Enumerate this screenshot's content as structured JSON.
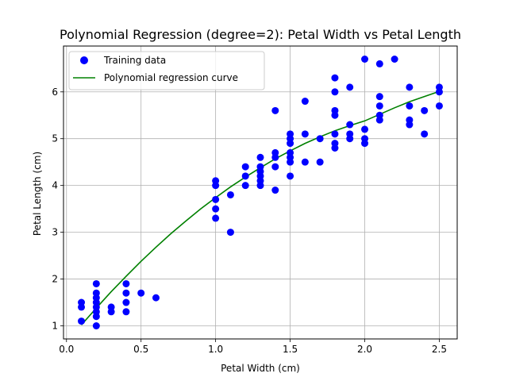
{
  "chart_data": {
    "type": "scatter",
    "title": "Polynomial Regression (degree=2): Petal Width vs Petal Length",
    "xlabel": "Petal Width (cm)",
    "ylabel": "Petal Length (cm)",
    "xlim": [
      -0.02,
      2.62
    ],
    "ylim": [
      0.72,
      6.98
    ],
    "grid": true,
    "legend_position": "top-left",
    "x_ticks": [
      0.0,
      0.5,
      1.0,
      1.5,
      2.0,
      2.5
    ],
    "x_tick_labels": [
      "0.0",
      "0.5",
      "1.0",
      "1.5",
      "2.0",
      "2.5"
    ],
    "y_ticks": [
      1,
      2,
      3,
      4,
      5,
      6
    ],
    "y_tick_labels": [
      "1",
      "2",
      "3",
      "4",
      "5",
      "6"
    ],
    "series": [
      {
        "name": "Training data",
        "kind": "scatter",
        "color": "#0000ff",
        "points": [
          [
            0.1,
            1.1
          ],
          [
            0.1,
            1.4
          ],
          [
            0.1,
            1.5
          ],
          [
            0.2,
            1.0
          ],
          [
            0.2,
            1.2
          ],
          [
            0.2,
            1.3
          ],
          [
            0.2,
            1.4
          ],
          [
            0.2,
            1.5
          ],
          [
            0.2,
            1.6
          ],
          [
            0.2,
            1.7
          ],
          [
            0.2,
            1.9
          ],
          [
            0.3,
            1.3
          ],
          [
            0.3,
            1.4
          ],
          [
            0.4,
            1.3
          ],
          [
            0.4,
            1.5
          ],
          [
            0.4,
            1.7
          ],
          [
            0.4,
            1.9
          ],
          [
            0.5,
            1.7
          ],
          [
            0.6,
            1.6
          ],
          [
            1.0,
            3.3
          ],
          [
            1.0,
            3.5
          ],
          [
            1.0,
            3.7
          ],
          [
            1.0,
            4.0
          ],
          [
            1.0,
            4.1
          ],
          [
            1.1,
            3.0
          ],
          [
            1.1,
            3.8
          ],
          [
            1.2,
            4.0
          ],
          [
            1.2,
            4.2
          ],
          [
            1.2,
            4.4
          ],
          [
            1.3,
            4.0
          ],
          [
            1.3,
            4.1
          ],
          [
            1.3,
            4.2
          ],
          [
            1.3,
            4.3
          ],
          [
            1.3,
            4.4
          ],
          [
            1.3,
            4.6
          ],
          [
            1.4,
            3.9
          ],
          [
            1.4,
            4.4
          ],
          [
            1.4,
            4.6
          ],
          [
            1.4,
            4.7
          ],
          [
            1.4,
            5.6
          ],
          [
            1.5,
            4.2
          ],
          [
            1.5,
            4.5
          ],
          [
            1.5,
            4.6
          ],
          [
            1.5,
            4.7
          ],
          [
            1.5,
            4.9
          ],
          [
            1.5,
            5.0
          ],
          [
            1.5,
            5.1
          ],
          [
            1.6,
            4.5
          ],
          [
            1.6,
            5.1
          ],
          [
            1.6,
            5.8
          ],
          [
            1.7,
            4.5
          ],
          [
            1.7,
            5.0
          ],
          [
            1.8,
            4.8
          ],
          [
            1.8,
            4.9
          ],
          [
            1.8,
            5.1
          ],
          [
            1.8,
            5.5
          ],
          [
            1.8,
            5.6
          ],
          [
            1.8,
            6.0
          ],
          [
            1.8,
            6.3
          ],
          [
            1.9,
            5.0
          ],
          [
            1.9,
            5.1
          ],
          [
            1.9,
            5.3
          ],
          [
            1.9,
            6.1
          ],
          [
            2.0,
            4.9
          ],
          [
            2.0,
            5.0
          ],
          [
            2.0,
            5.2
          ],
          [
            2.0,
            6.7
          ],
          [
            2.1,
            5.4
          ],
          [
            2.1,
            5.5
          ],
          [
            2.1,
            5.7
          ],
          [
            2.1,
            5.9
          ],
          [
            2.1,
            6.6
          ],
          [
            2.2,
            6.7
          ],
          [
            2.3,
            5.3
          ],
          [
            2.3,
            5.4
          ],
          [
            2.3,
            5.7
          ],
          [
            2.3,
            6.1
          ],
          [
            2.4,
            5.1
          ],
          [
            2.4,
            5.6
          ],
          [
            2.5,
            5.7
          ],
          [
            2.5,
            6.0
          ],
          [
            2.5,
            6.1
          ]
        ]
      },
      {
        "name": "Polynomial regression curve",
        "kind": "line",
        "color": "#008000",
        "points": [
          [
            0.1,
            1.02
          ],
          [
            0.2,
            1.38
          ],
          [
            0.3,
            1.73
          ],
          [
            0.4,
            2.06
          ],
          [
            0.5,
            2.38
          ],
          [
            0.6,
            2.68
          ],
          [
            0.7,
            2.97
          ],
          [
            0.8,
            3.24
          ],
          [
            0.9,
            3.5
          ],
          [
            1.0,
            3.74
          ],
          [
            1.1,
            3.97
          ],
          [
            1.2,
            4.18
          ],
          [
            1.3,
            4.38
          ],
          [
            1.4,
            4.57
          ],
          [
            1.5,
            4.74
          ],
          [
            1.6,
            4.9
          ],
          [
            1.7,
            5.04
          ],
          [
            1.8,
            5.17
          ],
          [
            1.9,
            5.28
          ],
          [
            2.0,
            5.38
          ],
          [
            2.1,
            5.52
          ],
          [
            2.2,
            5.66
          ],
          [
            2.3,
            5.79
          ],
          [
            2.4,
            5.9
          ],
          [
            2.5,
            6.01
          ]
        ]
      }
    ]
  }
}
